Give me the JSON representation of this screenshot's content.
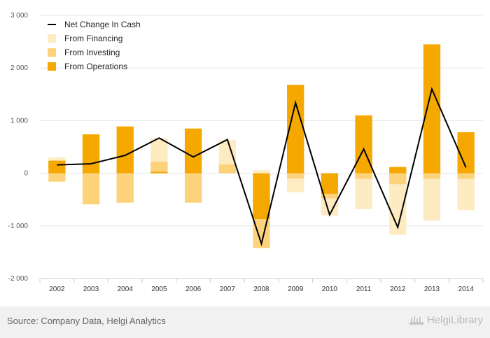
{
  "chart_data": {
    "type": "bar",
    "stacked": true,
    "categories": [
      "2002",
      "2003",
      "2004",
      "2005",
      "2006",
      "2007",
      "2008",
      "2009",
      "2010",
      "2011",
      "2012",
      "2013",
      "2014"
    ],
    "ylim": [
      -2000,
      3000
    ],
    "yticks": [
      -2000,
      -1000,
      0,
      1000,
      2000,
      3000
    ],
    "ytick_labels": [
      "-2 000",
      "-1 000",
      "0",
      "1 000",
      "2 000",
      "3 000"
    ],
    "grid": true,
    "legend_position": "top-left",
    "series": [
      {
        "name": "From Operations",
        "kind": "bar",
        "color": "#f5a800",
        "values": [
          240,
          740,
          890,
          30,
          850,
          0,
          -870,
          1680,
          -390,
          1100,
          120,
          2450,
          780
        ]
      },
      {
        "name": "From Investing",
        "kind": "bar",
        "color": "#fcd37a",
        "values": [
          -160,
          -590,
          -560,
          190,
          -560,
          170,
          -550,
          -100,
          -90,
          -110,
          -210,
          -110,
          -110
        ]
      },
      {
        "name": "From Financing",
        "kind": "bar",
        "color": "#fdebc2",
        "values": [
          60,
          0,
          0,
          450,
          0,
          460,
          60,
          -260,
          -320,
          -570,
          -960,
          -790,
          -590
        ]
      },
      {
        "name": "Net Change In Cash",
        "kind": "line",
        "color": "#000000",
        "values": [
          160,
          180,
          340,
          670,
          310,
          640,
          -1340,
          1340,
          -790,
          460,
          -1030,
          1600,
          110
        ]
      }
    ],
    "legend_order": [
      "Net Change In Cash",
      "From Financing",
      "From Investing",
      "From Operations"
    ]
  },
  "footer": {
    "source": "Source: Company Data, Helgi Analytics",
    "brand": "HelgiLibrary"
  }
}
